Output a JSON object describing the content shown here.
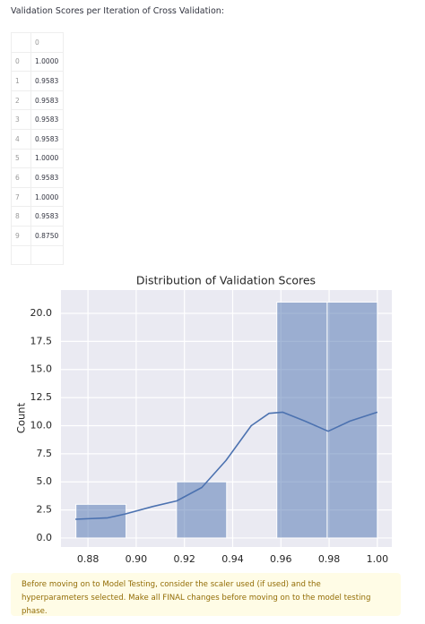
{
  "heading": "Validation Scores per Iteration of Cross Validation:",
  "table": {
    "columns": [
      "0"
    ],
    "index": [
      "0",
      "1",
      "2",
      "3",
      "4",
      "5",
      "6",
      "7",
      "8",
      "9"
    ],
    "rows": [
      [
        "1.0000"
      ],
      [
        "0.9583"
      ],
      [
        "0.9583"
      ],
      [
        "0.9583"
      ],
      [
        "0.9583"
      ],
      [
        "1.0000"
      ],
      [
        "0.9583"
      ],
      [
        "1.0000"
      ],
      [
        "0.9583"
      ],
      [
        "0.8750"
      ]
    ]
  },
  "chart_data": {
    "type": "histogram",
    "title": "Distribution of Validation Scores",
    "y_label": "Count",
    "bins": [
      0.875,
      0.8958,
      0.9167,
      0.9375,
      0.9583,
      0.9792,
      1.0
    ],
    "values": [
      3,
      0,
      5,
      0,
      21,
      21
    ],
    "color": "#4c72b0",
    "kde": {
      "x": [
        0.8748,
        0.8882,
        0.8956,
        0.9068,
        0.9168,
        0.9272,
        0.9372,
        0.9477,
        0.9551,
        0.9607,
        0.97,
        0.9796,
        0.9886,
        1.0
      ],
      "values": [
        1.67,
        1.8,
        2.15,
        2.8,
        3.3,
        4.5,
        6.9,
        10.0,
        11.1,
        11.2,
        10.4,
        9.5,
        10.4,
        11.2
      ],
      "color": "#4c72b0"
    },
    "xlim": [
      0.8688,
      1.006
    ],
    "ylim": [
      -0.8,
      22.07
    ],
    "xticks": [
      0.88,
      {
        "value": 0.9,
        "label": "0.90"
      },
      0.92,
      0.94,
      0.96,
      0.98,
      {
        "value": 1.0,
        "label": "1.00"
      }
    ],
    "yticks": [
      {
        "value": 0,
        "label": "0.0"
      },
      2.5,
      {
        "value": 5,
        "label": "5.0"
      },
      7.5,
      {
        "value": 10,
        "label": "10.0"
      },
      12.5,
      {
        "value": 15,
        "label": "15.0"
      },
      17.5,
      {
        "value": 20,
        "label": "20.0"
      }
    ],
    "grid": true
  },
  "note": "Before moving on to Model Testing, consider the scaler used (if used) and the hyperparameters selected. Make all FINAL changes before moving on to the model testing phase."
}
